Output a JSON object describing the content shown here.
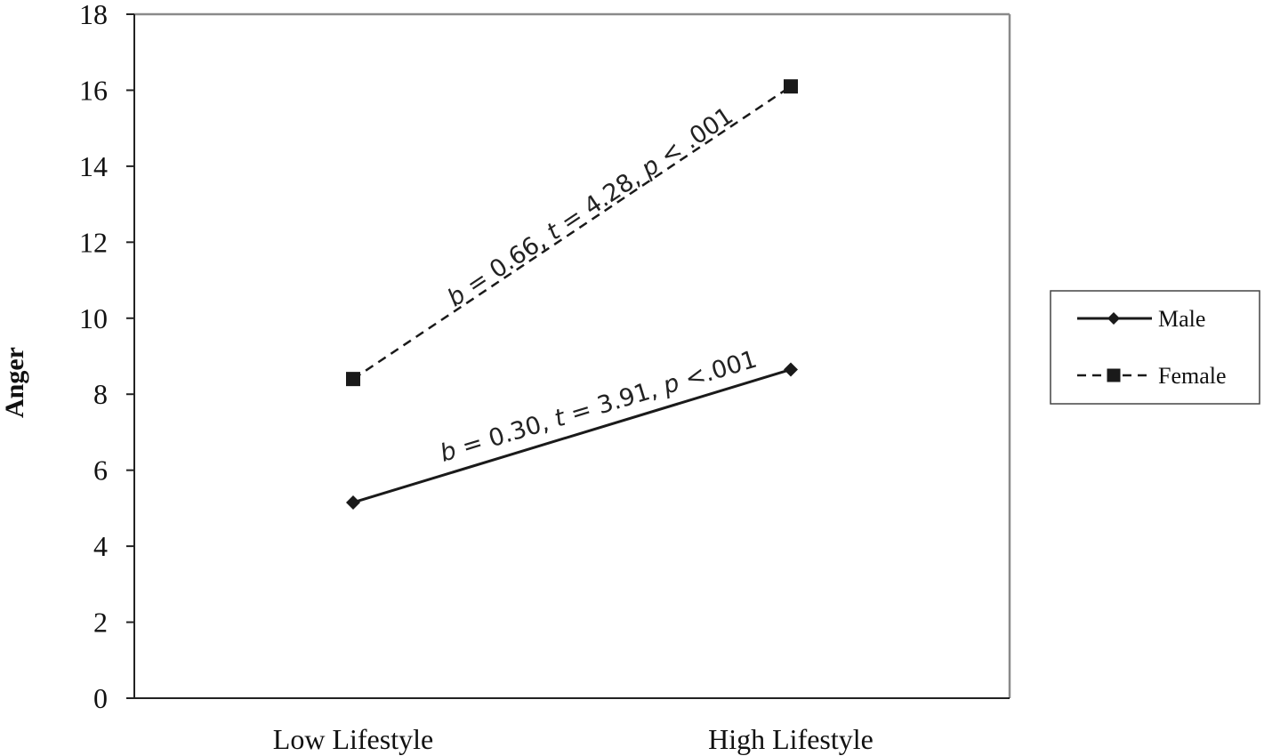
{
  "chart_data": {
    "type": "line",
    "categories": [
      "Low Lifestyle",
      "High Lifestyle"
    ],
    "ylabel": "Anger",
    "xlabel": "",
    "ylim": [
      0,
      18
    ],
    "yticks": [
      0,
      2,
      4,
      6,
      8,
      10,
      12,
      14,
      16,
      18
    ],
    "series": [
      {
        "name": "Male",
        "values": [
          5.15,
          8.65
        ],
        "line_style": "solid",
        "marker": "diamond",
        "color": "#1a1a1a"
      },
      {
        "name": "Female",
        "values": [
          8.4,
          16.1
        ],
        "line_style": "dashed",
        "marker": "square",
        "color": "#1a1a1a"
      }
    ],
    "annotations": [
      {
        "series": "Female",
        "parts": [
          {
            "t": "b",
            "i": true
          },
          {
            "t": " = 0.66, ",
            "i": false
          },
          {
            "t": "t",
            "i": true
          },
          {
            "t": "  = 4.28, ",
            "i": false
          },
          {
            "t": "p",
            "i": true
          },
          {
            "t": " < .001",
            "i": false
          }
        ]
      },
      {
        "series": "Male",
        "parts": [
          {
            "t": "b",
            "i": true
          },
          {
            "t": " = 0.30, ",
            "i": false
          },
          {
            "t": "t",
            "i": true
          },
          {
            "t": " = 3.91, ",
            "i": false
          },
          {
            "t": "p",
            "i": true
          },
          {
            "t": " <.001",
            "i": false
          }
        ]
      }
    ],
    "legend_position": "right",
    "grid": false
  }
}
